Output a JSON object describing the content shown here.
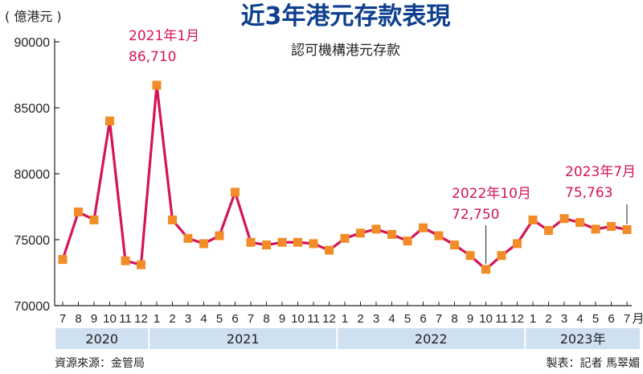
{
  "chart_data": {
    "type": "line",
    "title": "近3年港元存款表現",
    "subtitle": "認可機構港元存款",
    "ylabel": "( 億港元 )",
    "ylim": [
      70000,
      90000
    ],
    "yticks": [
      "90000",
      "85000",
      "80000",
      "75000",
      "70000"
    ],
    "ytick_values": [
      90000,
      85000,
      80000,
      75000,
      70000
    ],
    "xlabel_suffix": "月",
    "x": [
      "7",
      "8",
      "9",
      "10",
      "11",
      "12",
      "1",
      "2",
      "3",
      "4",
      "5",
      "6",
      "7",
      "8",
      "9",
      "10",
      "11",
      "12",
      "1",
      "2",
      "3",
      "4",
      "5",
      "6",
      "7",
      "8",
      "9",
      "10",
      "11",
      "12",
      "1",
      "2",
      "3",
      "4",
      "5",
      "6",
      "7"
    ],
    "series": [
      {
        "values": [
          73500,
          77100,
          76500,
          84000,
          73400,
          73100,
          86710,
          76500,
          75100,
          74700,
          75300,
          78600,
          74800,
          74600,
          74800,
          74800,
          74700,
          74200,
          75100,
          75500,
          75800,
          75400,
          74900,
          75900,
          75300,
          74600,
          73800,
          72750,
          73800,
          74700,
          76500,
          75700,
          76600,
          76300,
          75800,
          76000,
          75763
        ],
        "color": "#d4145a",
        "marker_color": "#f28c28"
      }
    ],
    "years": [
      {
        "label": "2020"
      },
      {
        "label": "2021"
      },
      {
        "label": "2022"
      },
      {
        "label": "2023年"
      }
    ],
    "annotations": [
      {
        "line1": "2021年1月",
        "line2": "86,710"
      },
      {
        "line1": "2022年10月",
        "line2": "72,750"
      },
      {
        "line1": "2023年7月",
        "line2": "75,763"
      }
    ],
    "grid": false
  },
  "footer": {
    "source": "資源來源：金管局",
    "credit": "製表：記者 馬翠媚"
  },
  "colors": {
    "title": "#0f3f8f",
    "line": "#d4145a",
    "marker": "#f28c28",
    "year_band": "#cfe0f1"
  }
}
